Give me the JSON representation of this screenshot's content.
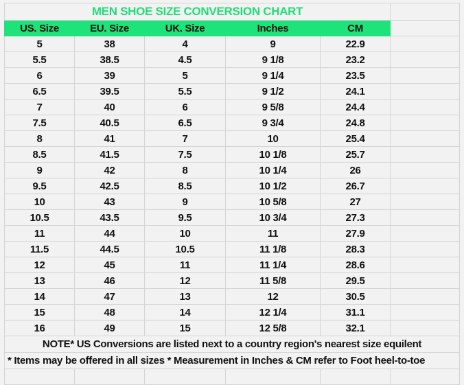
{
  "title": "MEN SHOE SIZE CONVERSION CHART",
  "colors": {
    "header_bg": "#1ee27a",
    "title_text": "#22dd77",
    "background": "#f2f2f2"
  },
  "columns": [
    "US. Size",
    "EU. Size",
    "UK. Size",
    "Inches",
    "CM"
  ],
  "rows": [
    [
      "5",
      "38",
      "4",
      "9",
      "22.9"
    ],
    [
      "5.5",
      "38.5",
      "4.5",
      "9 1/8",
      "23.2"
    ],
    [
      "6",
      "39",
      "5",
      "9 1/4",
      "23.5"
    ],
    [
      "6.5",
      "39.5",
      "5.5",
      "9 1/2",
      "24.1"
    ],
    [
      "7",
      "40",
      "6",
      "9 5/8",
      "24.4"
    ],
    [
      "7.5",
      "40.5",
      "6.5",
      "9 3/4",
      "24.8"
    ],
    [
      "8",
      "41",
      "7",
      "10",
      "25.4"
    ],
    [
      "8.5",
      "41.5",
      "7.5",
      "10 1/8",
      "25.7"
    ],
    [
      "9",
      "42",
      "8",
      "10 1/4",
      "26"
    ],
    [
      "9.5",
      "42.5",
      "8.5",
      "10 1/2",
      "26.7"
    ],
    [
      "10",
      "43",
      "9",
      "10 5/8",
      "27"
    ],
    [
      "10.5",
      "43.5",
      "9.5",
      "10 3/4",
      "27.3"
    ],
    [
      "11",
      "44",
      "10",
      "11",
      "27.9"
    ],
    [
      "11.5",
      "44.5",
      "10.5",
      "11 1/8",
      "28.3"
    ],
    [
      "12",
      "45",
      "11",
      "11 1/4",
      "28.6"
    ],
    [
      "13",
      "46",
      "12",
      "11 5/8",
      "29.5"
    ],
    [
      "14",
      "47",
      "13",
      "12",
      "30.5"
    ],
    [
      "15",
      "48",
      "14",
      "12 1/4",
      "31.1"
    ],
    [
      "16",
      "49",
      "15",
      "12 5/8",
      "32.1"
    ]
  ],
  "notes": [
    "NOTE* US Conversions are listed next to a country region's nearest size equilent",
    "* Items may be offered in all sizes * Measurement in Inches & CM refer to Foot heel-to-toe"
  ]
}
